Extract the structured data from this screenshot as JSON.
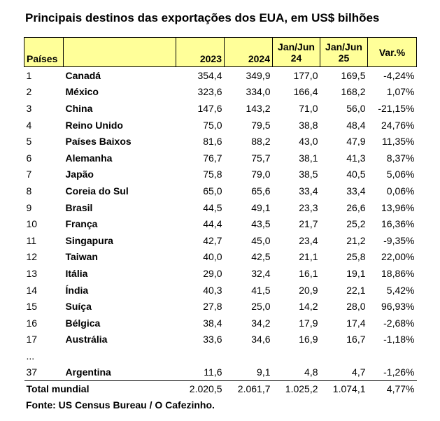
{
  "title": "Principais destinos das exportações dos EUA, em US$ bilhões",
  "header": {
    "rank": "Países",
    "y2023": "2023",
    "y2024": "2024",
    "h24_line1": "Jan/Jun",
    "h24_line2": "24",
    "h25_line1": "Jan/Jun",
    "h25_line2": "25",
    "var": "Var.%"
  },
  "rows": [
    {
      "rank": "1",
      "name": "Canadá",
      "y2023": "354,4",
      "y2024": "349,9",
      "h24": "177,0",
      "h25": "169,5",
      "var": "-4,24%"
    },
    {
      "rank": "2",
      "name": "México",
      "y2023": "323,6",
      "y2024": "334,0",
      "h24": "166,4",
      "h25": "168,2",
      "var": "1,07%"
    },
    {
      "rank": "3",
      "name": "China",
      "y2023": "147,6",
      "y2024": "143,2",
      "h24": "71,0",
      "h25": "56,0",
      "var": "-21,15%"
    },
    {
      "rank": "4",
      "name": "Reino Unido",
      "y2023": "75,0",
      "y2024": "79,5",
      "h24": "38,8",
      "h25": "48,4",
      "var": "24,76%"
    },
    {
      "rank": "5",
      "name": "Países Baixos",
      "y2023": "81,6",
      "y2024": "88,2",
      "h24": "43,0",
      "h25": "47,9",
      "var": "11,35%"
    },
    {
      "rank": "6",
      "name": "Alemanha",
      "y2023": "76,7",
      "y2024": "75,7",
      "h24": "38,1",
      "h25": "41,3",
      "var": "8,37%"
    },
    {
      "rank": "7",
      "name": "Japão",
      "y2023": "75,8",
      "y2024": "79,0",
      "h24": "38,5",
      "h25": "40,5",
      "var": "5,06%"
    },
    {
      "rank": "8",
      "name": "Coreia do Sul",
      "y2023": "65,0",
      "y2024": "65,6",
      "h24": "33,4",
      "h25": "33,4",
      "var": "0,06%"
    },
    {
      "rank": "9",
      "name": "Brasil",
      "y2023": "44,5",
      "y2024": "49,1",
      "h24": "23,3",
      "h25": "26,6",
      "var": "13,96%"
    },
    {
      "rank": "10",
      "name": "França",
      "y2023": "44,4",
      "y2024": "43,5",
      "h24": "21,7",
      "h25": "25,2",
      "var": "16,36%"
    },
    {
      "rank": "11",
      "name": "Singapura",
      "y2023": "42,7",
      "y2024": "45,0",
      "h24": "23,4",
      "h25": "21,2",
      "var": "-9,35%"
    },
    {
      "rank": "12",
      "name": "Taiwan",
      "y2023": "40,0",
      "y2024": "42,5",
      "h24": "21,1",
      "h25": "25,8",
      "var": "22,00%"
    },
    {
      "rank": "13",
      "name": "Itália",
      "y2023": "29,0",
      "y2024": "32,4",
      "h24": "16,1",
      "h25": "19,1",
      "var": "18,86%"
    },
    {
      "rank": "14",
      "name": "Índia",
      "y2023": "40,3",
      "y2024": "41,5",
      "h24": "20,9",
      "h25": "22,1",
      "var": "5,42%"
    },
    {
      "rank": "15",
      "name": "Suíça",
      "y2023": "27,8",
      "y2024": "25,0",
      "h24": "14,2",
      "h25": "28,0",
      "var": "96,93%"
    },
    {
      "rank": "16",
      "name": "Bélgica",
      "y2023": "38,4",
      "y2024": "34,2",
      "h24": "17,9",
      "h25": "17,4",
      "var": "-2,68%"
    },
    {
      "rank": "17",
      "name": "Austrália",
      "y2023": "33,6",
      "y2024": "34,6",
      "h24": "16,9",
      "h25": "16,7",
      "var": "-1,18%"
    }
  ],
  "ellipsis": "...",
  "argentina": {
    "rank": "37",
    "name": "Argentina",
    "y2023": "11,6",
    "y2024": "9,1",
    "h24": "4,8",
    "h25": "4,7",
    "var": "-1,26%"
  },
  "total": {
    "label": "Total mundial",
    "y2023": "2.020,5",
    "y2024": "2.061,7",
    "h24": "1.025,2",
    "h25": "1.074,1",
    "var": "4,77%"
  },
  "source": "Fonte: US Census Bureau / O Cafezinho."
}
